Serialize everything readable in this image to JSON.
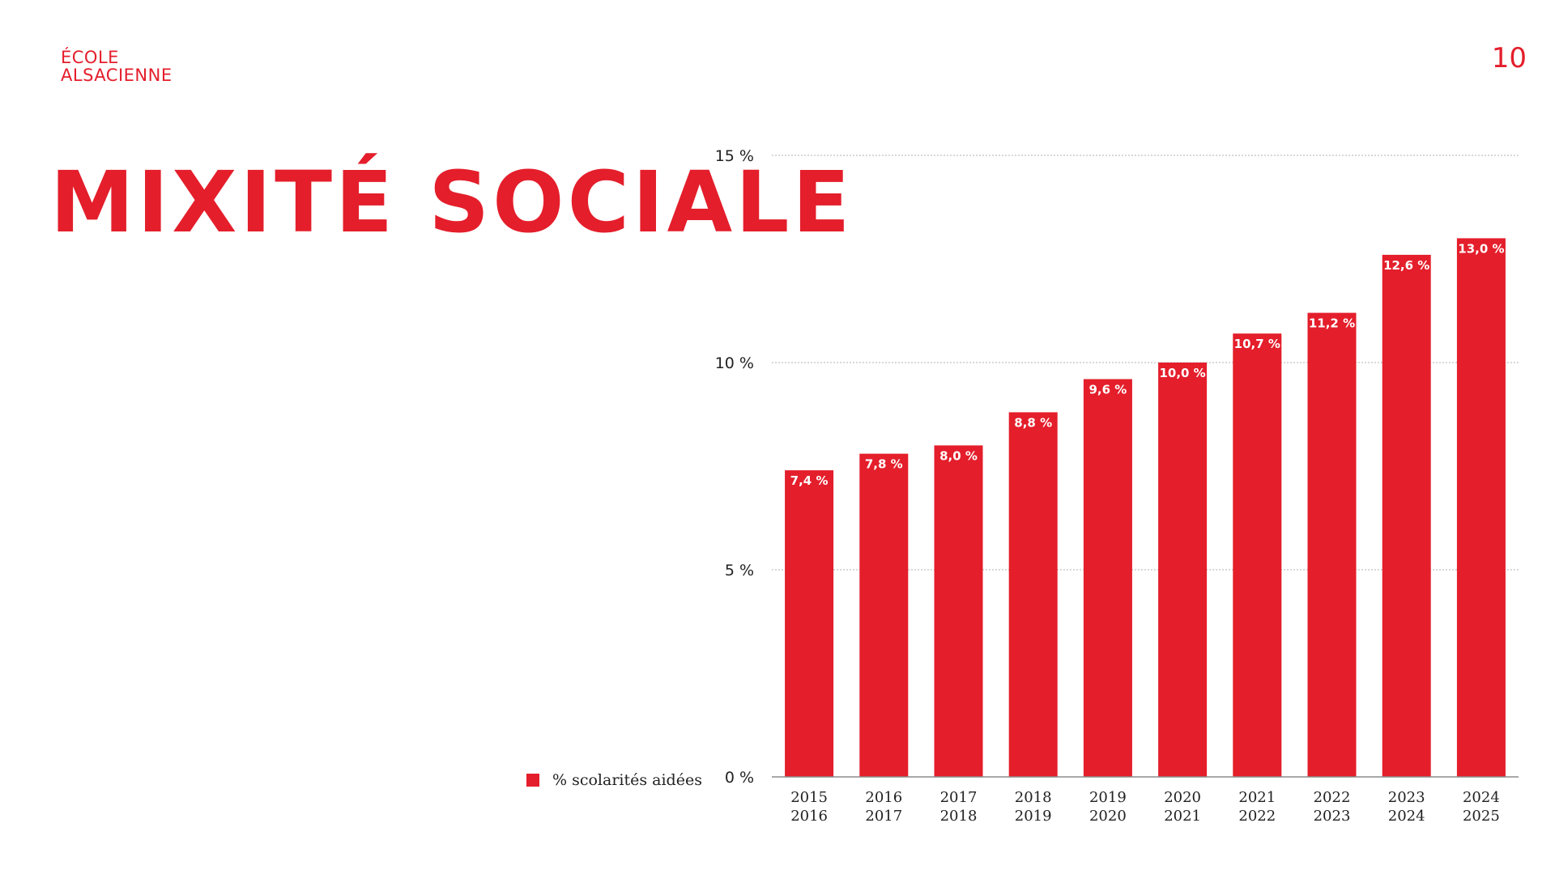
{
  "logo": {
    "line1": "ÉCOLE",
    "line2": "ALSACIENNE"
  },
  "page_number": "10",
  "title": "MIXITÉ SOCIALE",
  "legend": {
    "label": "% scolarités aidées"
  },
  "colors": {
    "accent": "#e41e2b",
    "grid": "#b0b0b0",
    "axis": "#8c8c8c"
  },
  "chart_data": {
    "type": "bar",
    "categories": [
      [
        "2015",
        "2016"
      ],
      [
        "2016",
        "2017"
      ],
      [
        "2017",
        "2018"
      ],
      [
        "2018",
        "2019"
      ],
      [
        "2019",
        "2020"
      ],
      [
        "2020",
        "2021"
      ],
      [
        "2021",
        "2022"
      ],
      [
        "2022",
        "2023"
      ],
      [
        "2023",
        "2024"
      ],
      [
        "2024",
        "2025"
      ]
    ],
    "values": [
      7.4,
      7.8,
      8.0,
      8.8,
      9.6,
      10.0,
      10.7,
      11.2,
      12.6,
      13.0
    ],
    "data_labels": [
      "7,4 %",
      "7,8 %",
      "8,0 %",
      "8,8 %",
      "9,6 %",
      "10,0 %",
      "10,7 %",
      "11,2 %",
      "12,6 %",
      "13,0 %"
    ],
    "series": [
      {
        "name": "% scolarités aidées",
        "values": [
          7.4,
          7.8,
          8.0,
          8.8,
          9.6,
          10.0,
          10.7,
          11.2,
          12.6,
          13.0
        ]
      }
    ],
    "yticks": [
      0,
      5,
      10,
      15
    ],
    "ytick_labels": [
      "0 %",
      "5 %",
      "10 %",
      "15 %"
    ],
    "ylim": [
      0,
      15
    ],
    "grid": true,
    "legend_position": "bottom-left"
  }
}
